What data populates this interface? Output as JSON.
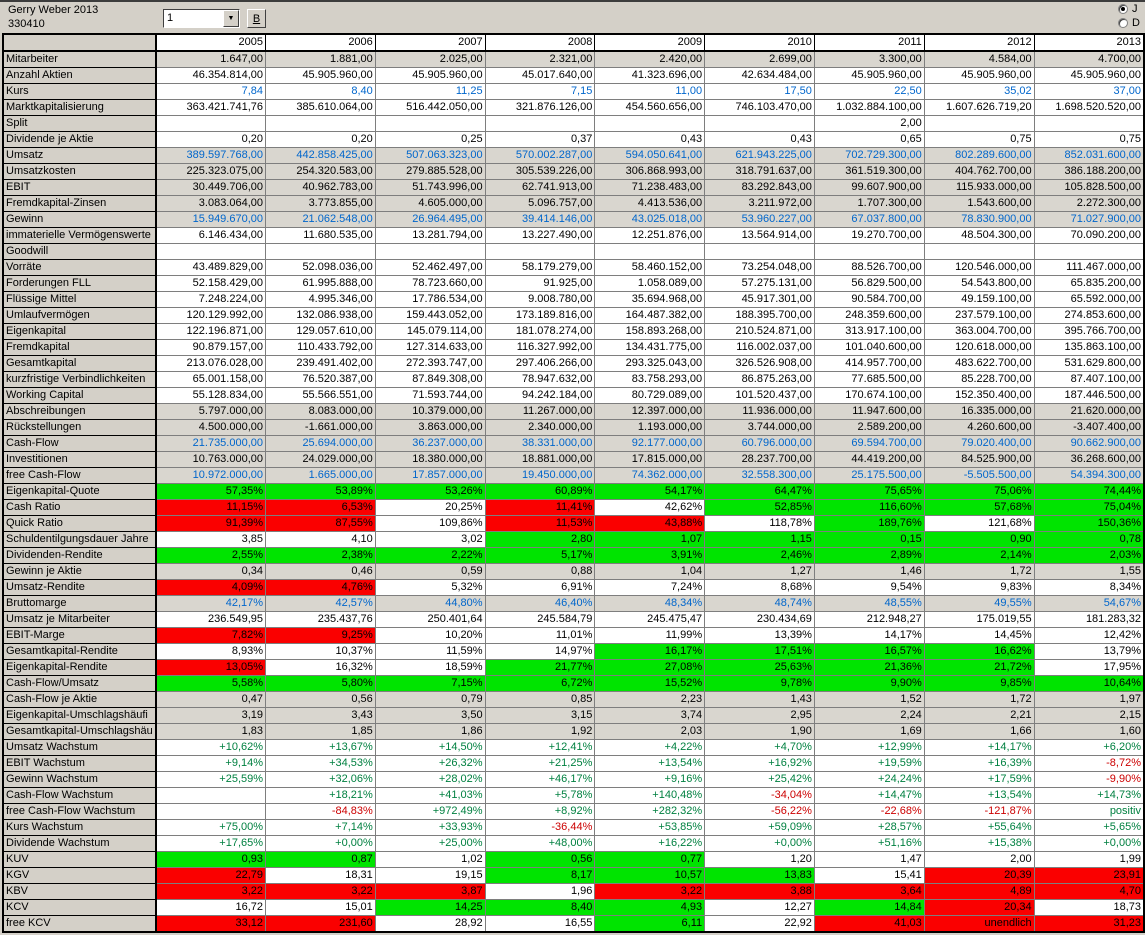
{
  "header": {
    "title": "Gerry Weber 2013",
    "id": "330410",
    "page_selector_value": "1",
    "b_button_label": "B",
    "radio_options": [
      {
        "label": "J",
        "selected": true
      },
      {
        "label": "D",
        "selected": false
      }
    ]
  },
  "colors": {
    "window_gray": "#D4D0C8",
    "row_gray": "#D9D6CF",
    "green_cell": "#00E400",
    "red_cell": "#FA0000",
    "blue_text": "#0066CC",
    "green_text": "#008040",
    "red_text": "#CC0000"
  },
  "table": {
    "years": [
      "2005",
      "2006",
      "2007",
      "2008",
      "2009",
      "2010",
      "2011",
      "2012",
      "2013"
    ],
    "rows": [
      {
        "label": "Mitarbeiter",
        "bg": "d",
        "values": [
          "1.647,00",
          "1.881,00",
          "2.025,00",
          "2.321,00",
          "2.420,00",
          "2.699,00",
          "3.300,00",
          "4.584,00",
          "4.700,00"
        ]
      },
      {
        "label": "Anzahl Aktien",
        "values": [
          "46.354.814,00",
          "45.905.960,00",
          "45.905.960,00",
          "45.017.640,00",
          "41.323.696,00",
          "42.634.484,00",
          "45.905.960,00",
          "45.905.960,00",
          "45.905.960,00"
        ]
      },
      {
        "label": "Kurs",
        "fg": "b",
        "values": [
          "7,84",
          "8,40",
          "11,25",
          "7,15",
          "11,00",
          "17,50",
          "22,50",
          "35,02",
          "37,00"
        ]
      },
      {
        "label": "Marktkapitalisierung",
        "values": [
          "363.421.741,76",
          "385.610.064,00",
          "516.442.050,00",
          "321.876.126,00",
          "454.560.656,00",
          "746.103.470,00",
          "1.032.884.100,00",
          "1.607.626.719,20",
          "1.698.520.520,00"
        ]
      },
      {
        "label": "Split",
        "values": [
          "",
          "",
          "",
          "",
          "",
          "",
          "2,00",
          "",
          ""
        ]
      },
      {
        "label": "Dividende je Aktie",
        "values": [
          "0,20",
          "0,20",
          "0,25",
          "0,37",
          "0,43",
          "0,43",
          "0,65",
          "0,75",
          "0,75"
        ]
      },
      {
        "label": "Umsatz",
        "bg": "d",
        "fg": "b",
        "values": [
          "389.597.768,00",
          "442.858.425,00",
          "507.063.323,00",
          "570.002.287,00",
          "594.050.641,00",
          "621.943.225,00",
          "702.729.300,00",
          "802.289.600,00",
          "852.031.600,00"
        ]
      },
      {
        "label": "Umsatzkosten",
        "bg": "d",
        "values": [
          "225.323.075,00",
          "254.320.583,00",
          "279.885.528,00",
          "305.539.226,00",
          "306.868.993,00",
          "318.791.637,00",
          "361.519.300,00",
          "404.762.700,00",
          "386.188.200,00"
        ]
      },
      {
        "label": "EBIT",
        "bg": "d",
        "values": [
          "30.449.706,00",
          "40.962.783,00",
          "51.743.996,00",
          "62.741.913,00",
          "71.238.483,00",
          "83.292.843,00",
          "99.607.900,00",
          "115.933.000,00",
          "105.828.500,00"
        ]
      },
      {
        "label": "Fremdkapital-Zinsen",
        "bg": "d",
        "values": [
          "3.083.064,00",
          "3.773.855,00",
          "4.605.000,00",
          "5.096.757,00",
          "4.413.536,00",
          "3.211.972,00",
          "1.707.300,00",
          "1.543.600,00",
          "2.272.300,00"
        ]
      },
      {
        "label": "Gewinn",
        "bg": "d",
        "fg": "b",
        "values": [
          "15.949.670,00",
          "21.062.548,00",
          "26.964.495,00",
          "39.414.146,00",
          "43.025.018,00",
          "53.960.227,00",
          "67.037.800,00",
          "78.830.900,00",
          "71.027.900,00"
        ]
      },
      {
        "label": "immaterielle Vermögenswerte",
        "values": [
          "6.146.434,00",
          "11.680.535,00",
          "13.281.794,00",
          "13.227.490,00",
          "12.251.876,00",
          "13.564.914,00",
          "19.270.700,00",
          "48.504.300,00",
          "70.090.200,00"
        ]
      },
      {
        "label": "Goodwill",
        "values": [
          "",
          "",
          "",
          "",
          "",
          "",
          "",
          "",
          ""
        ]
      },
      {
        "label": "Vorräte",
        "values": [
          "43.489.829,00",
          "52.098.036,00",
          "52.462.497,00",
          "58.179.279,00",
          "58.460.152,00",
          "73.254.048,00",
          "88.526.700,00",
          "120.546.000,00",
          "111.467.000,00"
        ]
      },
      {
        "label": "Forderungen FLL",
        "values": [
          "52.158.429,00",
          "61.995.888,00",
          "78.723.660,00",
          "91.925,00",
          "1.058.089,00",
          "57.275.131,00",
          "56.829.500,00",
          "54.543.800,00",
          "65.835.200,00"
        ]
      },
      {
        "label": "Flüssige Mittel",
        "values": [
          "7.248.224,00",
          "4.995.346,00",
          "17.786.534,00",
          "9.008.780,00",
          "35.694.968,00",
          "45.917.301,00",
          "90.584.700,00",
          "49.159.100,00",
          "65.592.000,00"
        ]
      },
      {
        "label": "Umlaufvermögen",
        "values": [
          "120.129.992,00",
          "132.086.938,00",
          "159.443.052,00",
          "173.189.816,00",
          "164.487.382,00",
          "188.395.700,00",
          "248.359.600,00",
          "237.579.100,00",
          "274.853.600,00"
        ]
      },
      {
        "label": "Eigenkapital",
        "values": [
          "122.196.871,00",
          "129.057.610,00",
          "145.079.114,00",
          "181.078.274,00",
          "158.893.268,00",
          "210.524.871,00",
          "313.917.100,00",
          "363.004.700,00",
          "395.766.700,00"
        ]
      },
      {
        "label": "Fremdkapital",
        "values": [
          "90.879.157,00",
          "110.433.792,00",
          "127.314.633,00",
          "116.327.992,00",
          "134.431.775,00",
          "116.002.037,00",
          "101.040.600,00",
          "120.618.000,00",
          "135.863.100,00"
        ]
      },
      {
        "label": "Gesamtkapital",
        "values": [
          "213.076.028,00",
          "239.491.402,00",
          "272.393.747,00",
          "297.406.266,00",
          "293.325.043,00",
          "326.526.908,00",
          "414.957.700,00",
          "483.622.700,00",
          "531.629.800,00"
        ]
      },
      {
        "label": "kurzfristige Verbindlichkeiten",
        "values": [
          "65.001.158,00",
          "76.520.387,00",
          "87.849.308,00",
          "78.947.632,00",
          "83.758.293,00",
          "86.875.263,00",
          "77.685.500,00",
          "85.228.700,00",
          "87.407.100,00"
        ]
      },
      {
        "label": "Working Capital",
        "values": [
          "55.128.834,00",
          "55.566.551,00",
          "71.593.744,00",
          "94.242.184,00",
          "80.729.089,00",
          "101.520.437,00",
          "170.674.100,00",
          "152.350.400,00",
          "187.446.500,00"
        ]
      },
      {
        "label": "Abschreibungen",
        "bg": "d",
        "values": [
          "5.797.000,00",
          "8.083.000,00",
          "10.379.000,00",
          "11.267.000,00",
          "12.397.000,00",
          "11.936.000,00",
          "11.947.600,00",
          "16.335.000,00",
          "21.620.000,00"
        ]
      },
      {
        "label": "Rückstellungen",
        "bg": "d",
        "values": [
          "4.500.000,00",
          "-1.661.000,00",
          "3.863.000,00",
          "2.340.000,00",
          "1.193.000,00",
          "3.744.000,00",
          "2.589.200,00",
          "4.260.600,00",
          "-3.407.400,00"
        ]
      },
      {
        "label": "Cash-Flow",
        "bg": "d",
        "fg": "b",
        "values": [
          "21.735.000,00",
          "25.694.000,00",
          "36.237.000,00",
          "38.331.000,00",
          "92.177.000,00",
          "60.796.000,00",
          "69.594.700,00",
          "79.020.400,00",
          "90.662.900,00"
        ]
      },
      {
        "label": "Investitionen",
        "bg": "d",
        "values": [
          "10.763.000,00",
          "24.029.000,00",
          "18.380.000,00",
          "18.881.000,00",
          "17.815.000,00",
          "28.237.700,00",
          "44.419.200,00",
          "84.525.900,00",
          "36.268.600,00"
        ]
      },
      {
        "label": "free Cash-Flow",
        "bg": "d",
        "fg": "b",
        "values": [
          "10.972.000,00",
          "1.665.000,00",
          "17.857.000,00",
          "19.450.000,00",
          "74.362.000,00",
          "32.558.300,00",
          "25.175.500,00",
          "-5.505.500,00",
          "54.394.300,00"
        ]
      },
      {
        "label": "Eigenkapital-Quote",
        "bgs": "ggggggggg",
        "values": [
          "57,35%",
          "53,89%",
          "53,26%",
          "60,89%",
          "54,17%",
          "64,47%",
          "75,65%",
          "75,06%",
          "74,44%"
        ]
      },
      {
        "label": "Cash Ratio",
        "bgs": "rrwrwgggg",
        "values": [
          "11,15%",
          "6,53%",
          "20,25%",
          "11,41%",
          "42,62%",
          "52,85%",
          "116,60%",
          "57,68%",
          "75,04%"
        ]
      },
      {
        "label": "Quick Ratio",
        "bgs": "rrwrrwgwg",
        "values": [
          "91,39%",
          "87,55%",
          "109,86%",
          "11,53%",
          "43,88%",
          "118,78%",
          "189,76%",
          "121,68%",
          "150,36%"
        ]
      },
      {
        "label": "Schuldentilgungsdauer Jahre",
        "bgs": "wwwgggggg",
        "values": [
          "3,85",
          "4,10",
          "3,02",
          "2,80",
          "1,07",
          "1,15",
          "0,15",
          "0,90",
          "0,78"
        ]
      },
      {
        "label": "Dividenden-Rendite",
        "bgs": "ggggggggg",
        "values": [
          "2,55%",
          "2,38%",
          "2,22%",
          "5,17%",
          "3,91%",
          "2,46%",
          "2,89%",
          "2,14%",
          "2,03%"
        ]
      },
      {
        "label": "Gewinn je Aktie",
        "bg": "d",
        "values": [
          "0,34",
          "0,46",
          "0,59",
          "0,88",
          "1,04",
          "1,27",
          "1,46",
          "1,72",
          "1,55"
        ]
      },
      {
        "label": "Umsatz-Rendite",
        "bgs": "rrwwwwwww",
        "values": [
          "4,09%",
          "4,76%",
          "5,32%",
          "6,91%",
          "7,24%",
          "8,68%",
          "9,54%",
          "9,83%",
          "8,34%"
        ]
      },
      {
        "label": "Bruttomarge",
        "bg": "d",
        "fg": "b",
        "values": [
          "42,17%",
          "42,57%",
          "44,80%",
          "46,40%",
          "48,34%",
          "48,74%",
          "48,55%",
          "49,55%",
          "54,67%"
        ]
      },
      {
        "label": "Umsatz je Mitarbeiter",
        "values": [
          "236.549,95",
          "235.437,76",
          "250.401,64",
          "245.584,79",
          "245.475,47",
          "230.434,69",
          "212.948,27",
          "175.019,55",
          "181.283,32"
        ]
      },
      {
        "label": "EBIT-Marge",
        "bgs": "rrwwwwwww",
        "values": [
          "7,82%",
          "9,25%",
          "10,20%",
          "11,01%",
          "11,99%",
          "13,39%",
          "14,17%",
          "14,45%",
          "12,42%"
        ]
      },
      {
        "label": "Gesamtkapital-Rendite",
        "bgs": "wwwwggggw",
        "values": [
          "8,93%",
          "10,37%",
          "11,59%",
          "14,97%",
          "16,17%",
          "17,51%",
          "16,57%",
          "16,62%",
          "13,79%"
        ]
      },
      {
        "label": "Eigenkapital-Rendite",
        "bgs": "rwwgggggw",
        "values": [
          "13,05%",
          "16,32%",
          "18,59%",
          "21,77%",
          "27,08%",
          "25,63%",
          "21,36%",
          "21,72%",
          "17,95%"
        ]
      },
      {
        "label": "Cash-Flow/Umsatz",
        "bgs": "ggggggggg",
        "values": [
          "5,58%",
          "5,80%",
          "7,15%",
          "6,72%",
          "15,52%",
          "9,78%",
          "9,90%",
          "9,85%",
          "10,64%"
        ]
      },
      {
        "label": "Cash-Flow je Aktie",
        "bg": "d",
        "values": [
          "0,47",
          "0,56",
          "0,79",
          "0,85",
          "2,23",
          "1,43",
          "1,52",
          "1,72",
          "1,97"
        ]
      },
      {
        "label": "Eigenkapital-Umschlagshäufi",
        "bg": "d",
        "values": [
          "3,19",
          "3,43",
          "3,50",
          "3,15",
          "3,74",
          "2,95",
          "2,24",
          "2,21",
          "2,15"
        ]
      },
      {
        "label": "Gesamtkapital-Umschlagshäu",
        "bg": "d",
        "values": [
          "1,83",
          "1,85",
          "1,86",
          "1,92",
          "2,03",
          "1,90",
          "1,69",
          "1,66",
          "1,60"
        ]
      },
      {
        "label": "Umsatz Wachstum",
        "fg": "g",
        "values": [
          "+10,62%",
          "+13,67%",
          "+14,50%",
          "+12,41%",
          "+4,22%",
          "+4,70%",
          "+12,99%",
          "+14,17%",
          "+6,20%"
        ]
      },
      {
        "label": "EBIT Wachstum",
        "fgs": "ggggggggr",
        "values": [
          "+9,14%",
          "+34,53%",
          "+26,32%",
          "+21,25%",
          "+13,54%",
          "+16,92%",
          "+19,59%",
          "+16,39%",
          "-8,72%"
        ]
      },
      {
        "label": "Gewinn Wachstum",
        "fgs": "ggggggggr",
        "values": [
          "+25,59%",
          "+32,06%",
          "+28,02%",
          "+46,17%",
          "+9,16%",
          "+25,42%",
          "+24,24%",
          "+17,59%",
          "-9,90%"
        ]
      },
      {
        "label": "Cash-Flow Wachstum",
        "fgs": "kggggrggg",
        "values": [
          "",
          "+18,21%",
          "+41,03%",
          "+5,78%",
          "+140,48%",
          "-34,04%",
          "+14,47%",
          "+13,54%",
          "+14,73%"
        ]
      },
      {
        "label": "free Cash-Flow Wachstum",
        "fgs": "krgggrrrg",
        "values": [
          "",
          "-84,83%",
          "+972,49%",
          "+8,92%",
          "+282,32%",
          "-56,22%",
          "-22,68%",
          "-121,87%",
          "positiv"
        ]
      },
      {
        "label": "Kurs Wachstum",
        "fgs": "gggrggggg",
        "values": [
          "+75,00%",
          "+7,14%",
          "+33,93%",
          "-36,44%",
          "+53,85%",
          "+59,09%",
          "+28,57%",
          "+55,64%",
          "+5,65%"
        ]
      },
      {
        "label": "Dividende Wachstum",
        "fg": "g",
        "values": [
          "+17,65%",
          "+0,00%",
          "+25,00%",
          "+48,00%",
          "+16,22%",
          "+0,00%",
          "+51,16%",
          "+15,38%",
          "+0,00%"
        ]
      },
      {
        "label": "KUV",
        "bgs": "ggwggwwww",
        "values": [
          "0,93",
          "0,87",
          "1,02",
          "0,56",
          "0,77",
          "1,20",
          "1,47",
          "2,00",
          "1,99"
        ]
      },
      {
        "label": "KGV",
        "bgs": "rwwgggwrr",
        "values": [
          "22,79",
          "18,31",
          "19,15",
          "8,17",
          "10,57",
          "13,83",
          "15,41",
          "20,39",
          "23,91"
        ]
      },
      {
        "label": "KBV",
        "bgs": "rrrwrrrrr",
        "values": [
          "3,22",
          "3,22",
          "3,87",
          "1,96",
          "3,22",
          "3,88",
          "3,64",
          "4,89",
          "4,70"
        ]
      },
      {
        "label": "KCV",
        "bgs": "wwgggwgrw",
        "values": [
          "16,72",
          "15,01",
          "14,25",
          "8,40",
          "4,93",
          "12,27",
          "14,84",
          "20,34",
          "18,73"
        ]
      },
      {
        "label": "free KCV",
        "bgs": "rrwwgwrrr",
        "values": [
          "33,12",
          "231,60",
          "28,92",
          "16,55",
          "6,11",
          "22,92",
          "41,03",
          "unendlich",
          "31,23"
        ]
      }
    ]
  }
}
